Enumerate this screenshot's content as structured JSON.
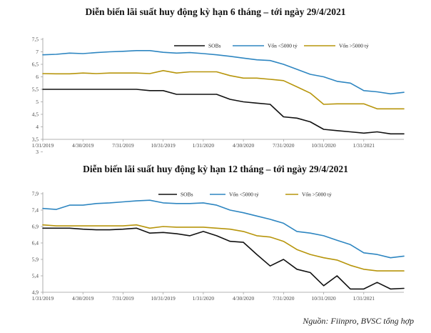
{
  "source_note": "Nguồn: Fiinpro, BVSC tổng hợp",
  "colors": {
    "sobs": "#111111",
    "small": "#2e86c1",
    "large": "#b7950b"
  },
  "chart_data": [
    {
      "type": "line",
      "title": "Diễn biến lãi suất huy động kỳ hạn 6 tháng – tới ngày 29/4/2021",
      "ylim": [
        3.5,
        7.5
      ],
      "yticks": [
        "3",
        "3,5",
        "4",
        "4,5",
        "5",
        "5,5",
        "6",
        "6,5",
        "7",
        "7,5"
      ],
      "ytick_values": [
        3,
        3.5,
        4,
        4.5,
        5,
        5.5,
        6,
        6.5,
        7,
        7.5
      ],
      "xlim": [
        0,
        27
      ],
      "xtick_labels": [
        "1/31/2019",
        "4/30/2019",
        "7/31/2019",
        "10/31/2019",
        "1/31/2020",
        "4/30/2020",
        "7/31/2020",
        "10/31/2020",
        "1/31/2021"
      ],
      "xtick_positions": [
        0,
        3,
        6,
        9,
        12,
        15,
        18,
        21,
        24
      ],
      "legend_position": "top-right",
      "series": [
        {
          "name": "SOBs",
          "color": "#111111",
          "x": [
            0,
            1,
            2,
            3,
            4,
            5,
            6,
            7,
            8,
            9,
            10,
            11,
            12,
            13,
            14,
            15,
            16,
            17,
            18,
            19,
            20,
            21,
            22,
            23,
            24,
            25,
            26,
            27
          ],
          "values": [
            5.5,
            5.5,
            5.5,
            5.5,
            5.5,
            5.5,
            5.5,
            5.5,
            5.45,
            5.45,
            5.3,
            5.3,
            5.3,
            5.3,
            5.1,
            5.0,
            4.95,
            4.9,
            4.4,
            4.35,
            4.2,
            3.9,
            3.85,
            3.8,
            3.75,
            3.8,
            3.72,
            3.72
          ]
        },
        {
          "name": "Vốn <5000 tỷ",
          "color": "#2e86c1",
          "x": [
            0,
            1,
            2,
            3,
            4,
            5,
            6,
            7,
            8,
            9,
            10,
            11,
            12,
            13,
            14,
            15,
            16,
            17,
            18,
            19,
            20,
            21,
            22,
            23,
            24,
            25,
            26,
            27
          ],
          "values": [
            6.88,
            6.9,
            6.95,
            6.93,
            6.97,
            7.0,
            7.02,
            7.05,
            7.05,
            6.98,
            6.95,
            6.97,
            6.93,
            6.88,
            6.82,
            6.75,
            6.68,
            6.65,
            6.5,
            6.3,
            6.1,
            6.0,
            5.82,
            5.75,
            5.45,
            5.4,
            5.32,
            5.38
          ]
        },
        {
          "name": "Vốn >5000 tỷ",
          "color": "#b7950b",
          "x": [
            0,
            1,
            2,
            3,
            4,
            5,
            6,
            7,
            8,
            9,
            10,
            11,
            12,
            13,
            14,
            15,
            16,
            17,
            18,
            19,
            20,
            21,
            22,
            23,
            24,
            25,
            26,
            27
          ],
          "values": [
            6.13,
            6.12,
            6.12,
            6.15,
            6.13,
            6.15,
            6.15,
            6.15,
            6.13,
            6.25,
            6.15,
            6.2,
            6.2,
            6.2,
            6.05,
            5.95,
            5.95,
            5.9,
            5.85,
            5.6,
            5.35,
            4.9,
            4.92,
            4.92,
            4.92,
            4.72,
            4.72,
            4.72
          ]
        }
      ]
    },
    {
      "type": "line",
      "title": "Diễn biến lãi suất huy động kỳ hạn 12 tháng – tới ngày 29/4/2021",
      "ylim": [
        4.9,
        7.9
      ],
      "yticks": [
        "4,9",
        "5,4",
        "5,9",
        "6,4",
        "6,9",
        "7,4",
        "7,9"
      ],
      "ytick_values": [
        4.9,
        5.4,
        5.9,
        6.4,
        6.9,
        7.4,
        7.9
      ],
      "xlim": [
        0,
        27
      ],
      "xtick_labels": [
        "1/31/2019",
        "4/30/2019",
        "7/31/2019",
        "10/31/2019",
        "1/31/2020",
        "4/30/2020",
        "7/31/2020",
        "10/31/2020",
        "1/31/2021"
      ],
      "xtick_positions": [
        0,
        3,
        6,
        9,
        12,
        15,
        18,
        21,
        24
      ],
      "legend_position": "top-right",
      "series": [
        {
          "name": "SOBs",
          "color": "#111111",
          "x": [
            0,
            1,
            2,
            3,
            4,
            5,
            6,
            7,
            8,
            9,
            10,
            11,
            12,
            13,
            14,
            15,
            16,
            17,
            18,
            19,
            20,
            21,
            22,
            23,
            24,
            25,
            26,
            27
          ],
          "values": [
            6.85,
            6.85,
            6.85,
            6.82,
            6.8,
            6.8,
            6.82,
            6.85,
            6.7,
            6.72,
            6.68,
            6.62,
            6.75,
            6.62,
            6.45,
            6.42,
            6.05,
            5.7,
            5.9,
            5.6,
            5.5,
            5.1,
            5.4,
            5.0,
            5.0,
            5.2,
            5.0,
            5.02
          ]
        },
        {
          "name": "Vốn <5000 tỷ",
          "color": "#2e86c1",
          "x": [
            0,
            1,
            2,
            3,
            4,
            5,
            6,
            7,
            8,
            9,
            10,
            11,
            12,
            13,
            14,
            15,
            16,
            17,
            18,
            19,
            20,
            21,
            22,
            23,
            24,
            25,
            26,
            27
          ],
          "values": [
            7.45,
            7.42,
            7.55,
            7.55,
            7.6,
            7.62,
            7.65,
            7.68,
            7.7,
            7.62,
            7.6,
            7.6,
            7.62,
            7.55,
            7.4,
            7.32,
            7.22,
            7.12,
            7.0,
            6.75,
            6.7,
            6.62,
            6.48,
            6.35,
            6.1,
            6.05,
            5.95,
            6.0
          ]
        },
        {
          "name": "Vốn >5000 tỷ",
          "color": "#b7950b",
          "x": [
            0,
            1,
            2,
            3,
            4,
            5,
            6,
            7,
            8,
            9,
            10,
            11,
            12,
            13,
            14,
            15,
            16,
            17,
            18,
            19,
            20,
            21,
            22,
            23,
            24,
            25,
            26,
            27
          ],
          "values": [
            6.95,
            6.92,
            6.92,
            6.92,
            6.92,
            6.92,
            6.92,
            6.95,
            6.85,
            6.9,
            6.88,
            6.88,
            6.88,
            6.85,
            6.82,
            6.75,
            6.62,
            6.58,
            6.45,
            6.2,
            6.05,
            5.95,
            5.88,
            5.72,
            5.6,
            5.55,
            5.55,
            5.55
          ]
        }
      ]
    }
  ]
}
